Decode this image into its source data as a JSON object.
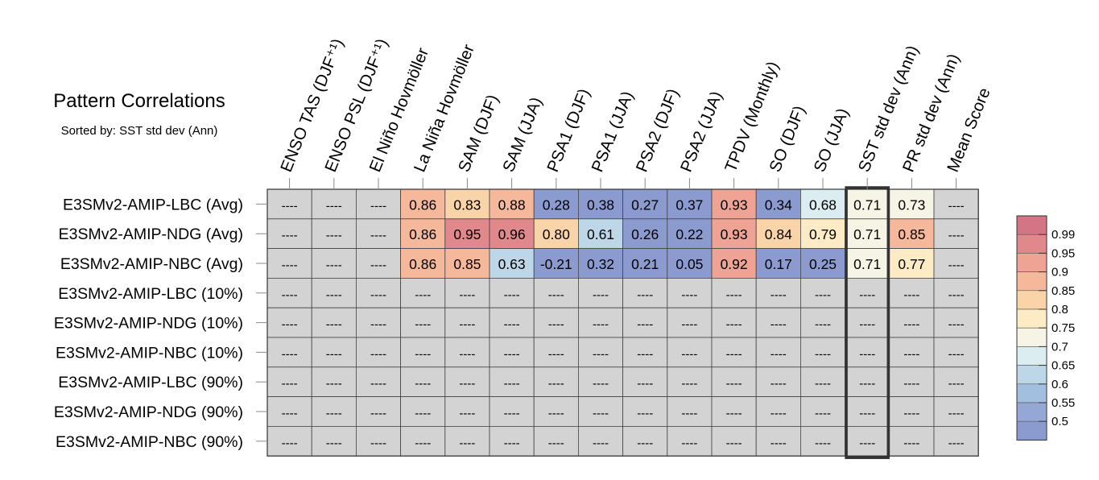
{
  "chart_data": {
    "type": "heatmap",
    "title": "Pattern Correlations",
    "subtitle": "Sorted by: SST std dev (Ann)",
    "columns": [
      "ENSO TAS (DJF⁺¹)",
      "ENSO PSL (DJF⁺¹)",
      "El Niño Hovmöller",
      "La Niña Hovmöller",
      "SAM (DJF)",
      "SAM (JJA)",
      "PSA1 (DJF)",
      "PSA1 (JJA)",
      "PSA2 (DJF)",
      "PSA2 (JJA)",
      "TPDV (Monthly)",
      "SO (DJF)",
      "SO (JJA)",
      "SST std dev (Ann)",
      "PR std dev (Ann)",
      "Mean Score"
    ],
    "rows": [
      "E3SMv2-AMIP-LBC (Avg)",
      "E3SMv2-AMIP-NDG (Avg)",
      "E3SMv2-AMIP-NBC (Avg)",
      "E3SMv2-AMIP-LBC (10%)",
      "E3SMv2-AMIP-NDG (10%)",
      "E3SMv2-AMIP-NBC (10%)",
      "E3SMv2-AMIP-LBC (90%)",
      "E3SMv2-AMIP-NDG (90%)",
      "E3SMv2-AMIP-NBC (90%)"
    ],
    "values": [
      [
        null,
        null,
        null,
        0.86,
        0.83,
        0.88,
        0.28,
        0.38,
        0.27,
        0.37,
        0.93,
        0.34,
        0.68,
        0.71,
        0.73,
        null
      ],
      [
        null,
        null,
        null,
        0.86,
        0.95,
        0.96,
        0.8,
        0.61,
        0.26,
        0.22,
        0.93,
        0.84,
        0.79,
        0.71,
        0.85,
        null
      ],
      [
        null,
        null,
        null,
        0.86,
        0.85,
        0.63,
        -0.21,
        0.32,
        0.21,
        0.05,
        0.92,
        0.17,
        0.25,
        0.71,
        0.77,
        null
      ],
      [
        null,
        null,
        null,
        null,
        null,
        null,
        null,
        null,
        null,
        null,
        null,
        null,
        null,
        null,
        null,
        null
      ],
      [
        null,
        null,
        null,
        null,
        null,
        null,
        null,
        null,
        null,
        null,
        null,
        null,
        null,
        null,
        null,
        null
      ],
      [
        null,
        null,
        null,
        null,
        null,
        null,
        null,
        null,
        null,
        null,
        null,
        null,
        null,
        null,
        null,
        null
      ],
      [
        null,
        null,
        null,
        null,
        null,
        null,
        null,
        null,
        null,
        null,
        null,
        null,
        null,
        null,
        null,
        null
      ],
      [
        null,
        null,
        null,
        null,
        null,
        null,
        null,
        null,
        null,
        null,
        null,
        null,
        null,
        null,
        null,
        null
      ],
      [
        null,
        null,
        null,
        null,
        null,
        null,
        null,
        null,
        null,
        null,
        null,
        null,
        null,
        null,
        null,
        null
      ]
    ],
    "value_labels": [
      [
        "----",
        "----",
        "----",
        "0.86",
        "0.83",
        "0.88",
        "0.28",
        "0.38",
        "0.27",
        "0.37",
        "0.93",
        "0.34",
        "0.68",
        "0.71",
        "0.73",
        "----"
      ],
      [
        "----",
        "----",
        "----",
        "0.86",
        "0.95",
        "0.96",
        "0.80",
        "0.61",
        "0.26",
        "0.22",
        "0.93",
        "0.84",
        "0.79",
        "0.71",
        "0.85",
        "----"
      ],
      [
        "----",
        "----",
        "----",
        "0.86",
        "0.85",
        "0.63",
        "-0.21",
        "0.32",
        "0.21",
        "0.05",
        "0.92",
        "0.17",
        "0.25",
        "0.71",
        "0.77",
        "----"
      ],
      [
        "----",
        "----",
        "----",
        "----",
        "----",
        "----",
        "----",
        "----",
        "----",
        "----",
        "----",
        "----",
        "----",
        "----",
        "----",
        "----"
      ],
      [
        "----",
        "----",
        "----",
        "----",
        "----",
        "----",
        "----",
        "----",
        "----",
        "----",
        "----",
        "----",
        "----",
        "----",
        "----",
        "----"
      ],
      [
        "----",
        "----",
        "----",
        "----",
        "----",
        "----",
        "----",
        "----",
        "----",
        "----",
        "----",
        "----",
        "----",
        "----",
        "----",
        "----"
      ],
      [
        "----",
        "----",
        "----",
        "----",
        "----",
        "----",
        "----",
        "----",
        "----",
        "----",
        "----",
        "----",
        "----",
        "----",
        "----",
        "----"
      ],
      [
        "----",
        "----",
        "----",
        "----",
        "----",
        "----",
        "----",
        "----",
        "----",
        "----",
        "----",
        "----",
        "----",
        "----",
        "----",
        "----"
      ],
      [
        "----",
        "----",
        "----",
        "----",
        "----",
        "----",
        "----",
        "----",
        "----",
        "----",
        "----",
        "----",
        "----",
        "----",
        "----",
        "----"
      ]
    ],
    "highlighted_column": "SST std dev (Ann)",
    "missing_color": "#d3d3d3",
    "colorbar": {
      "ticks": [
        "0.99",
        "0.95",
        "0.9",
        "0.85",
        "0.8",
        "0.75",
        "0.7",
        "0.65",
        "0.6",
        "0.55",
        "0.5"
      ],
      "colors": [
        "#d47585",
        "#e0888c",
        "#eea394",
        "#f5b89b",
        "#fad4a9",
        "#fcebc4",
        "#f6f4e4",
        "#dcedf2",
        "#bdd7e8",
        "#a2bfdf",
        "#95a8d5",
        "#8c9bcf"
      ]
    }
  }
}
